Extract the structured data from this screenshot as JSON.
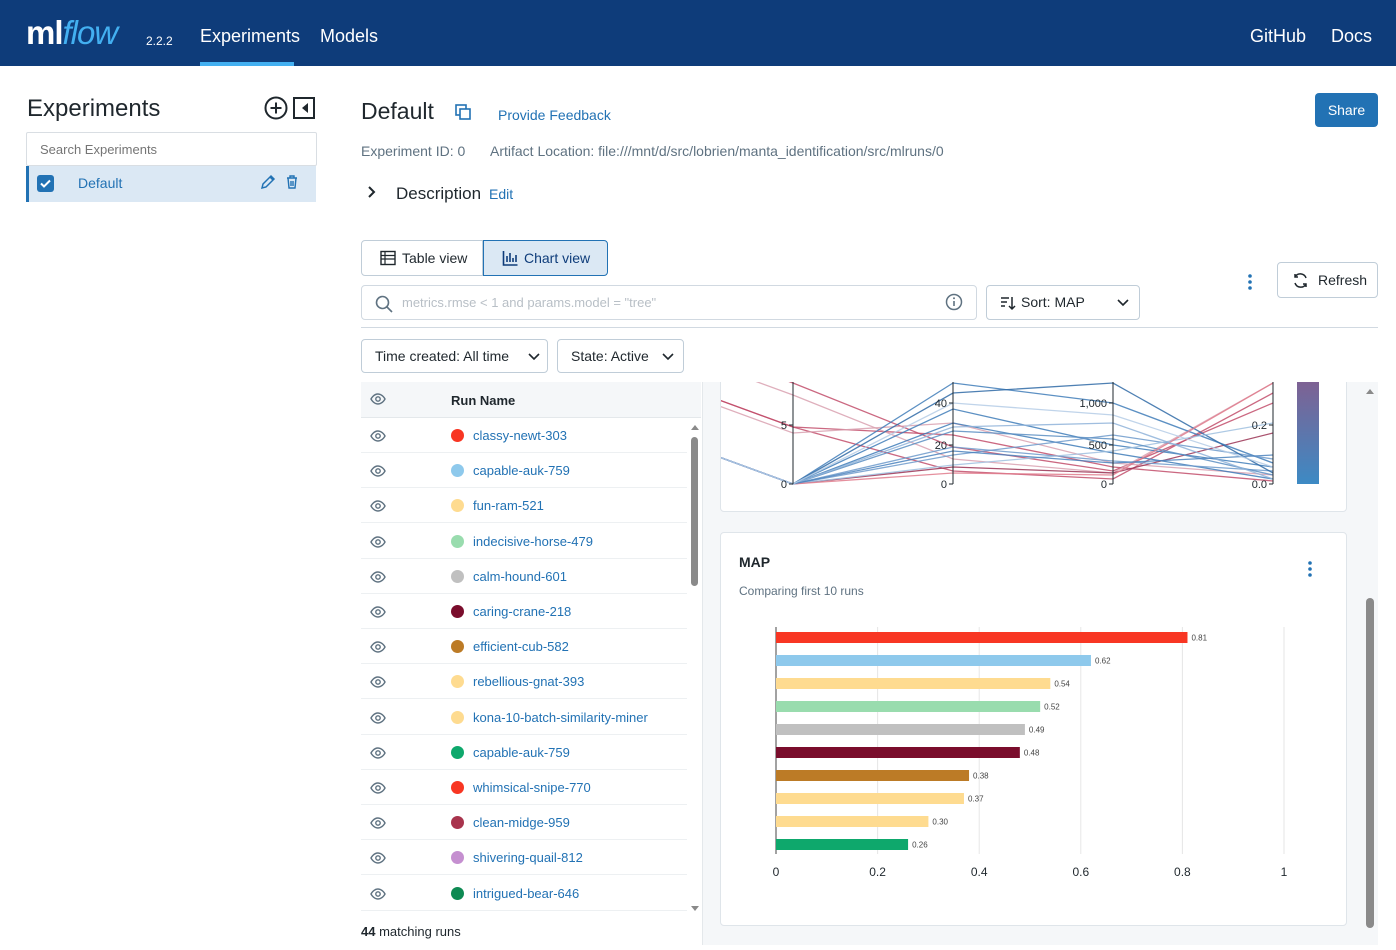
{
  "header": {
    "logo_ml": "ml",
    "logo_flow": "flow",
    "version": "2.2.2",
    "nav": [
      "Experiments",
      "Models"
    ],
    "right_links": [
      "GitHub",
      "Docs"
    ]
  },
  "sidebar": {
    "title": "Experiments",
    "search_placeholder": "Search Experiments",
    "items": [
      {
        "label": "Default",
        "checked": true
      }
    ]
  },
  "experiment": {
    "title": "Default",
    "feedback_link": "Provide Feedback",
    "share_label": "Share",
    "id_text": "Experiment ID: 0",
    "artifact_text": "Artifact Location: file:///mnt/d/src/lobrien/manta_identification/src/mlruns/0",
    "description_label": "Description",
    "description_edit": "Edit"
  },
  "toolbar": {
    "table_view": "Table view",
    "chart_view": "Chart view",
    "search_placeholder": "metrics.rmse < 1 and params.model = \"tree\"",
    "sort_label": "Sort: MAP",
    "refresh_label": "Refresh",
    "time_filter": "Time created: All time",
    "state_filter": "State: Active"
  },
  "runs": {
    "column_header": "Run Name",
    "footer_count": "44",
    "footer_text": " matching runs",
    "rows": [
      {
        "name": "classy-newt-303",
        "color": "#f83623"
      },
      {
        "name": "capable-auk-759",
        "color": "#8ec9ec"
      },
      {
        "name": "fun-ram-521",
        "color": "#fedb90"
      },
      {
        "name": "indecisive-horse-479",
        "color": "#99dcae"
      },
      {
        "name": "calm-hound-601",
        "color": "#c0c0c0"
      },
      {
        "name": "caring-crane-218",
        "color": "#7a0d2c"
      },
      {
        "name": "efficient-cub-582",
        "color": "#bc7b26"
      },
      {
        "name": "rebellious-gnat-393",
        "color": "#fedb90"
      },
      {
        "name": "kona-10-batch-similarity-miner",
        "color": "#fedb90"
      },
      {
        "name": "capable-auk-759",
        "color": "#0ea86c"
      },
      {
        "name": "whimsical-snipe-770",
        "color": "#f83623"
      },
      {
        "name": "clean-midge-959",
        "color": "#a8344d"
      },
      {
        "name": "shivering-quail-812",
        "color": "#c58fd0"
      },
      {
        "name": "intrigued-bear-646",
        "color": "#0e8a53"
      }
    ]
  },
  "parallel_chart": {
    "axis1_ticks": [
      "5",
      "0"
    ],
    "axis2_ticks": [
      "40",
      "20",
      "0"
    ],
    "axis3_ticks": [
      "1,000",
      "500",
      "0"
    ],
    "axis4_ticks": [
      "0.2",
      "0.0"
    ]
  },
  "chart_data": {
    "type": "bar",
    "title": "MAP",
    "subtitle": "Comparing first 10 runs",
    "orientation": "horizontal",
    "categories": [
      "classy-newt-303",
      "capable-auk-759",
      "fun-ram-521",
      "indecisive-horse-479",
      "calm-hound-601",
      "caring-crane-218",
      "efficient-cub-582",
      "rebellious-gnat-393",
      "kona-10-batch-similarity-miner",
      "capable-auk-759"
    ],
    "values": [
      0.81,
      0.62,
      0.54,
      0.52,
      0.49,
      0.48,
      0.38,
      0.37,
      0.3,
      0.26
    ],
    "value_labels": [
      "0.81",
      "0.62",
      "0.54",
      "0.52",
      "0.49",
      "0.48",
      "0.38",
      "0.37",
      "0.30",
      "0.26"
    ],
    "colors": [
      "#f83623",
      "#8ec9ec",
      "#fedb90",
      "#99dcae",
      "#c0c0c0",
      "#7a0d2c",
      "#bc7b26",
      "#fedb90",
      "#fedb90",
      "#0ea86c"
    ],
    "xlim": [
      0,
      1
    ],
    "x_ticks": [
      "0",
      "0.2",
      "0.4",
      "0.6",
      "0.8",
      "1"
    ],
    "grid": true
  }
}
